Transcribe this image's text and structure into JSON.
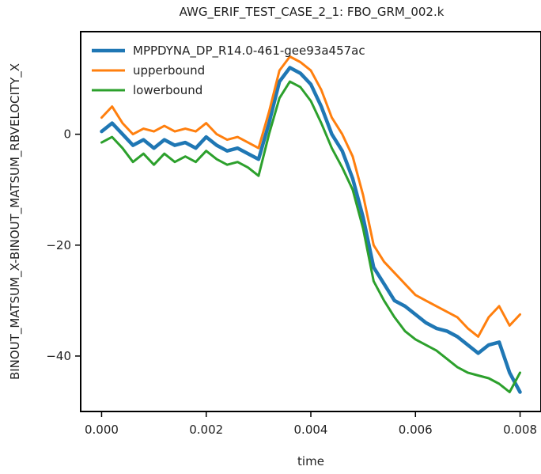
{
  "chart_data": {
    "type": "line",
    "title": "AWG_ERIF_TEST_CASE_2_1: FBO_GRM_002.k",
    "xlabel": "time",
    "ylabel": "BINOUT_MATSUM_X-BINOUT_MATSUM_RBVELOCITY_X",
    "xlim": [
      -0.0004,
      0.0084
    ],
    "ylim": [
      -50,
      18.5
    ],
    "xticks": [
      0.0,
      0.002,
      0.004,
      0.006,
      0.008
    ],
    "xtick_labels": [
      "0.000",
      "0.002",
      "0.004",
      "0.006",
      "0.008"
    ],
    "yticks": [
      0,
      -20,
      -40
    ],
    "ytick_labels": [
      "0",
      "−20",
      "−40"
    ],
    "grid": false,
    "legend_position": "top-left",
    "series": [
      {
        "name": "MPPDYNA_DP_R14.0-461-gee93a457ac",
        "color": "#1f77b4",
        "x": [
          0.0,
          0.0002,
          0.0004,
          0.0006,
          0.0008,
          0.001,
          0.0012,
          0.0014,
          0.0016,
          0.0018,
          0.002,
          0.0022,
          0.0024,
          0.0026,
          0.0028,
          0.003,
          0.0032,
          0.0034,
          0.0036,
          0.0038,
          0.004,
          0.0042,
          0.0044,
          0.0046,
          0.0048,
          0.005,
          0.0052,
          0.0054,
          0.0056,
          0.0058,
          0.006,
          0.0062,
          0.0064,
          0.0066,
          0.0068,
          0.007,
          0.0072,
          0.0074,
          0.0076,
          0.0078,
          0.008
        ],
        "y": [
          0.5,
          2.0,
          0.0,
          -2.0,
          -1.0,
          -2.5,
          -1.0,
          -2.0,
          -1.5,
          -2.5,
          -0.5,
          -2.0,
          -3.0,
          -2.5,
          -3.5,
          -4.5,
          2.0,
          9.5,
          12.0,
          11.0,
          9.0,
          5.0,
          0.0,
          -3.0,
          -8.0,
          -15.0,
          -24.0,
          -27.0,
          -30.0,
          -31.0,
          -32.5,
          -34.0,
          -35.0,
          -35.5,
          -36.5,
          -38.0,
          -39.5,
          -38.0,
          -37.5,
          -43.0,
          -46.5
        ]
      },
      {
        "name": "upperbound",
        "color": "#ff7f0e",
        "x": [
          0.0,
          0.0002,
          0.0004,
          0.0006,
          0.0008,
          0.001,
          0.0012,
          0.0014,
          0.0016,
          0.0018,
          0.002,
          0.0022,
          0.0024,
          0.0026,
          0.0028,
          0.003,
          0.0032,
          0.0034,
          0.0036,
          0.0038,
          0.004,
          0.0042,
          0.0044,
          0.0046,
          0.0048,
          0.005,
          0.0052,
          0.0054,
          0.0056,
          0.0058,
          0.006,
          0.0062,
          0.0064,
          0.0066,
          0.0068,
          0.007,
          0.0072,
          0.0074,
          0.0076,
          0.0078,
          0.008
        ],
        "y": [
          3.0,
          5.0,
          2.0,
          0.0,
          1.0,
          0.5,
          1.5,
          0.5,
          1.0,
          0.5,
          2.0,
          0.0,
          -1.0,
          -0.5,
          -1.5,
          -2.5,
          4.0,
          11.5,
          14.0,
          13.0,
          11.5,
          8.0,
          3.0,
          0.0,
          -4.0,
          -11.0,
          -20.0,
          -23.0,
          -25.0,
          -27.0,
          -29.0,
          -30.0,
          -31.0,
          -32.0,
          -33.0,
          -35.0,
          -36.5,
          -33.0,
          -31.0,
          -34.5,
          -32.5
        ]
      },
      {
        "name": "lowerbound",
        "color": "#2ca02c",
        "x": [
          0.0,
          0.0002,
          0.0004,
          0.0006,
          0.0008,
          0.001,
          0.0012,
          0.0014,
          0.0016,
          0.0018,
          0.002,
          0.0022,
          0.0024,
          0.0026,
          0.0028,
          0.003,
          0.0032,
          0.0034,
          0.0036,
          0.0038,
          0.004,
          0.0042,
          0.0044,
          0.0046,
          0.0048,
          0.005,
          0.0052,
          0.0054,
          0.0056,
          0.0058,
          0.006,
          0.0062,
          0.0064,
          0.0066,
          0.0068,
          0.007,
          0.0072,
          0.0074,
          0.0076,
          0.0078,
          0.008
        ],
        "y": [
          -1.5,
          -0.5,
          -2.5,
          -5.0,
          -3.5,
          -5.5,
          -3.5,
          -5.0,
          -4.0,
          -5.0,
          -3.0,
          -4.5,
          -5.5,
          -5.0,
          -6.0,
          -7.5,
          0.0,
          6.5,
          9.5,
          8.5,
          6.0,
          2.0,
          -2.5,
          -6.0,
          -10.0,
          -17.0,
          -26.5,
          -30.0,
          -33.0,
          -35.5,
          -37.0,
          -38.0,
          -39.0,
          -40.5,
          -42.0,
          -43.0,
          -43.5,
          -44.0,
          -45.0,
          -46.5,
          -43.0
        ]
      }
    ]
  }
}
